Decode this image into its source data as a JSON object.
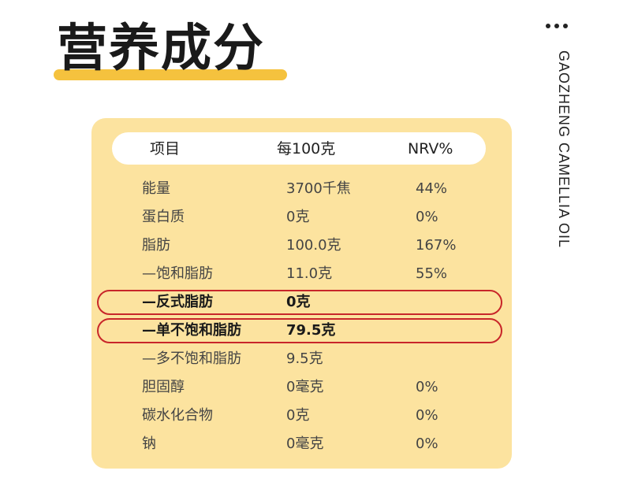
{
  "title": "营养成分",
  "side_label": "GAOZHENG CAMELLIA OIL",
  "table": {
    "headers": [
      "项目",
      "每100克",
      "NRV%"
    ],
    "rows": [
      {
        "item": "能量",
        "per100g": "3700千焦",
        "nrv": "44%"
      },
      {
        "item": "蛋白质",
        "per100g": "0克",
        "nrv": "0%"
      },
      {
        "item": "脂肪",
        "per100g": "100.0克",
        "nrv": "167%"
      },
      {
        "item": "—饱和脂肪",
        "per100g": "11.0克",
        "nrv": "55%"
      },
      {
        "item": "—反式脂肪",
        "per100g": "0克",
        "nrv": "",
        "highlighted": true
      },
      {
        "item": "—单不饱和脂肪",
        "per100g": "79.5克",
        "nrv": "",
        "highlighted": true
      },
      {
        "item": "—多不饱和脂肪",
        "per100g": "9.5克",
        "nrv": ""
      },
      {
        "item": "胆固醇",
        "per100g": "0毫克",
        "nrv": "0%"
      },
      {
        "item": "碳水化合物",
        "per100g": "0克",
        "nrv": "0%"
      },
      {
        "item": "钠",
        "per100g": "0毫克",
        "nrv": "0%"
      }
    ]
  },
  "colors": {
    "card": "#fce39f",
    "accent": "#f5c23e",
    "highlight_border": "#c8262a"
  }
}
